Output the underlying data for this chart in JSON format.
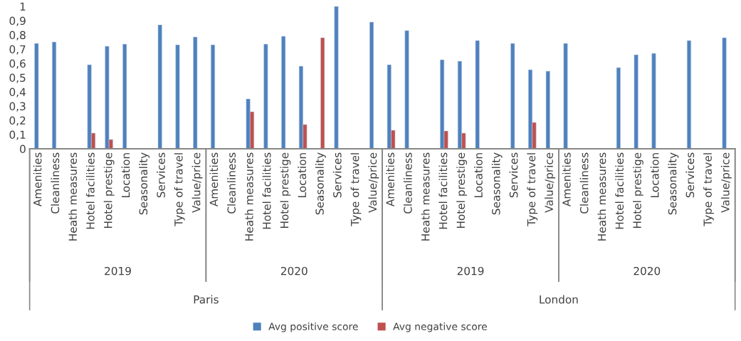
{
  "chart_data": {
    "type": "bar",
    "categories": [
      "Amenities",
      "Cleanliness",
      "Heath measures",
      "Hotel facilities",
      "Hotel prestige",
      "Location",
      "Seasonality",
      "Services",
      "Type of travel",
      "Value/price",
      "Amenities",
      "Cleanliness",
      "Heath measures",
      "Hotel facilities",
      "Hotel prestige",
      "Location",
      "Seasonality",
      "Services",
      "Type of travel",
      "Value/price",
      "Amenities",
      "Cleanliness",
      "Heath measures",
      "Hotel facilities",
      "Hotel prestige",
      "Location",
      "Seasonality",
      "Services",
      "Type of travel",
      "Value/price",
      "Amenities",
      "Cleanliness",
      "Heath measures",
      "Hotel facilities",
      "Hotel prestige",
      "Location",
      "Seasonality",
      "Services",
      "Type of travel",
      "Value/price"
    ],
    "series": [
      {
        "name": "Avg positive score",
        "color": "#4f81bd",
        "values": [
          0.74,
          0.75,
          null,
          0.59,
          0.72,
          0.735,
          null,
          0.87,
          0.73,
          0.785,
          0.73,
          null,
          0.35,
          0.735,
          0.79,
          0.58,
          null,
          1.0,
          null,
          0.89,
          0.59,
          0.83,
          null,
          0.625,
          0.615,
          0.76,
          null,
          0.74,
          0.555,
          0.545,
          0.74,
          null,
          null,
          0.57,
          0.66,
          0.67,
          null,
          0.76,
          null,
          0.78
        ]
      },
      {
        "name": "Avg negative score",
        "color": "#c0504d",
        "values": [
          null,
          null,
          null,
          0.11,
          0.065,
          null,
          null,
          null,
          null,
          null,
          null,
          null,
          0.26,
          null,
          null,
          0.17,
          0.78,
          null,
          null,
          null,
          0.13,
          null,
          null,
          0.125,
          0.11,
          null,
          null,
          null,
          0.185,
          null,
          null,
          null,
          null,
          null,
          null,
          null,
          null,
          null,
          null,
          null
        ]
      }
    ],
    "annotations": [
      "2019",
      "2020",
      "2019",
      "2020",
      "Paris",
      "London"
    ],
    "ylim": [
      0,
      1
    ],
    "yticks": [
      0,
      {
        "value": 0.1,
        "label": "0,1"
      },
      {
        "value": 0.2,
        "label": "0,2"
      },
      {
        "value": 0.3,
        "label": "0,3"
      },
      {
        "value": 0.4,
        "label": "0,4"
      },
      {
        "value": 0.5,
        "label": "0,5"
      },
      {
        "value": 0.6,
        "label": "0,6"
      },
      {
        "value": 0.7,
        "label": "0,7"
      },
      {
        "value": 0.8,
        "label": "0,8"
      },
      {
        "value": 0.9,
        "label": "0,9"
      },
      1
    ],
    "grid": false,
    "legend": "bottom"
  }
}
